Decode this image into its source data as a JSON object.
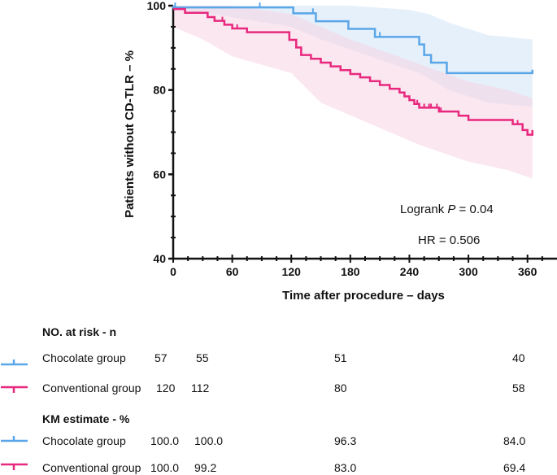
{
  "chart_data": {
    "type": "line",
    "subtype": "kaplan-meier",
    "xlabel": "Time after procedure – days",
    "ylabel": "Patients without CD-TLR – %",
    "xlim": [
      0,
      390
    ],
    "ylim": [
      40,
      100
    ],
    "xticks": [
      0,
      60,
      120,
      180,
      240,
      300,
      360
    ],
    "yticks": [
      40,
      60,
      80,
      100
    ],
    "annotations": {
      "logrank_prefix": "Logrank ",
      "logrank_p": "P",
      "logrank_value": " = 0.04",
      "hr": "HR = 0.506"
    },
    "series": [
      {
        "name": "Chocolate group",
        "color": "#5aa6e8",
        "band_color": "#cfe3f7",
        "steps": [
          [
            0,
            100
          ],
          [
            0,
            99.6
          ],
          [
            35,
            99.6
          ],
          [
            42,
            99.6
          ],
          [
            120,
            99.6
          ],
          [
            122,
            98.2
          ],
          [
            140,
            98.2
          ],
          [
            145,
            96.3
          ],
          [
            175,
            96.3
          ],
          [
            178,
            94.5
          ],
          [
            200,
            94.5
          ],
          [
            205,
            92.6
          ],
          [
            245,
            92.6
          ],
          [
            250,
            90.8
          ],
          [
            255,
            88.3
          ],
          [
            262,
            86.5
          ],
          [
            275,
            86.5
          ],
          [
            278,
            84.0
          ],
          [
            365,
            84.0
          ],
          [
            365,
            84.8
          ]
        ],
        "ci_upper": [
          [
            0,
            100
          ],
          [
            120,
            100
          ],
          [
            180,
            100
          ],
          [
            240,
            99
          ],
          [
            260,
            98
          ],
          [
            280,
            96
          ],
          [
            320,
            93
          ],
          [
            365,
            92
          ]
        ],
        "ci_lower": [
          [
            0,
            99
          ],
          [
            40,
            98
          ],
          [
            120,
            95
          ],
          [
            150,
            92
          ],
          [
            200,
            88
          ],
          [
            250,
            84
          ],
          [
            280,
            80
          ],
          [
            320,
            77
          ],
          [
            365,
            76
          ]
        ],
        "censor_x": [
          2,
          88,
          142,
          210,
          255
        ],
        "km_estimate": [
          "100.0",
          "100.0",
          "96.3",
          "84.0"
        ],
        "at_risk": [
          "57",
          "55",
          "51",
          "40"
        ]
      },
      {
        "name": "Conventional group",
        "color": "#e8287e",
        "band_color": "#f8d3e4",
        "steps": [
          [
            0,
            99.2
          ],
          [
            10,
            99.2
          ],
          [
            12,
            98.3
          ],
          [
            30,
            98.3
          ],
          [
            35,
            97.3
          ],
          [
            42,
            96.4
          ],
          [
            52,
            95.5
          ],
          [
            60,
            94.6
          ],
          [
            70,
            94.6
          ],
          [
            75,
            93.7
          ],
          [
            112,
            93.7
          ],
          [
            118,
            91.9
          ],
          [
            125,
            90.1
          ],
          [
            130,
            88.3
          ],
          [
            140,
            87.4
          ],
          [
            150,
            86.5
          ],
          [
            160,
            85.6
          ],
          [
            170,
            84.7
          ],
          [
            180,
            83.8
          ],
          [
            190,
            83.0
          ],
          [
            200,
            82.1
          ],
          [
            210,
            81.2
          ],
          [
            220,
            80.3
          ],
          [
            230,
            79.4
          ],
          [
            235,
            78.5
          ],
          [
            240,
            77.6
          ],
          [
            245,
            76.7
          ],
          [
            250,
            75.8
          ],
          [
            255,
            75.8
          ],
          [
            270,
            74.9
          ],
          [
            290,
            73.9
          ],
          [
            300,
            72.9
          ],
          [
            310,
            72.9
          ],
          [
            320,
            72.9
          ],
          [
            340,
            72.9
          ],
          [
            345,
            71.9
          ],
          [
            350,
            71.9
          ],
          [
            355,
            70.5
          ],
          [
            360,
            69.4
          ],
          [
            365,
            69.4
          ],
          [
            365,
            70.5
          ]
        ],
        "ci_upper": [
          [
            0,
            100
          ],
          [
            60,
            100
          ],
          [
            120,
            98
          ],
          [
            180,
            92
          ],
          [
            240,
            87
          ],
          [
            300,
            82
          ],
          [
            340,
            80
          ],
          [
            365,
            78
          ]
        ],
        "ci_lower": [
          [
            0,
            95
          ],
          [
            30,
            92
          ],
          [
            60,
            88
          ],
          [
            120,
            84
          ],
          [
            150,
            77
          ],
          [
            200,
            72
          ],
          [
            250,
            67
          ],
          [
            300,
            63
          ],
          [
            340,
            61
          ],
          [
            365,
            59
          ]
        ],
        "censor_x": [
          50,
          65,
          125,
          180,
          248,
          255,
          260,
          262,
          268,
          272,
          300,
          350
        ],
        "km_estimate": [
          "100.0",
          "99.2",
          "83.0",
          "69.4"
        ],
        "at_risk": [
          "120",
          "112",
          "80",
          "58"
        ]
      }
    ]
  },
  "tables": {
    "at_risk_title": "NO. at risk - n",
    "km_title": "KM estimate - %"
  }
}
